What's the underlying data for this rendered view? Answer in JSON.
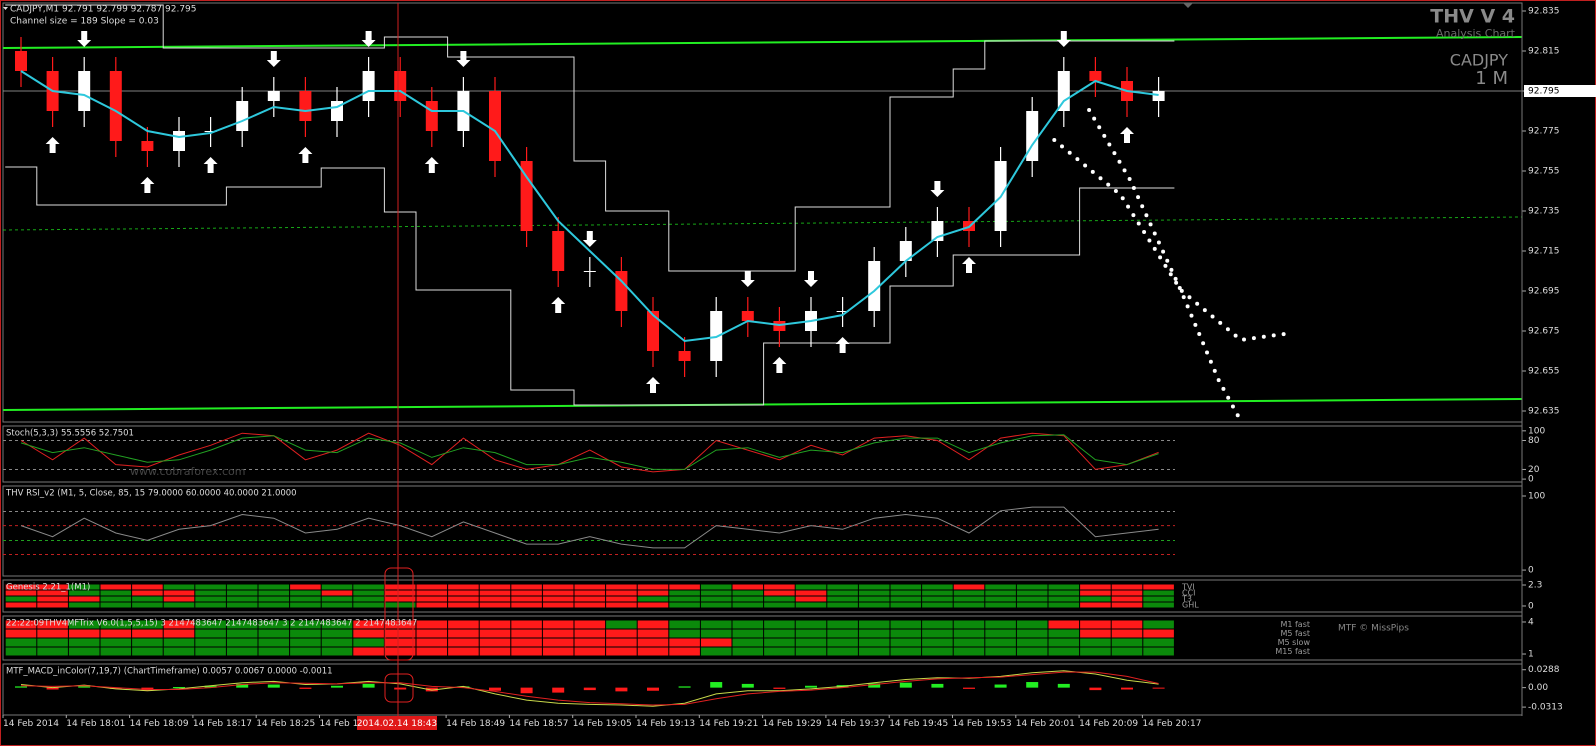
{
  "header": {
    "symbol_line": "CADJPY,M1  92.791 92.799 92.787 92.795",
    "channel_info": "Channel size = 189 Slope = 0.03",
    "logo": "THV V 4",
    "logo_sub": "Analysis Chart",
    "symbol": "CADJPY",
    "timeframe": "1 M"
  },
  "time_axis": {
    "labels": [
      "14 Feb 2014",
      "14 Feb 18:01",
      "14 Feb 18:09",
      "14 Feb 18:17",
      "14 Feb 18:25",
      "14 Feb 18",
      null,
      "14 Feb 18:49",
      "14 Feb 18:57",
      "14 Feb 19:05",
      "14 Feb 19:13",
      "14 Feb 19:21",
      "14 Feb 19:29",
      "14 Feb 19:37",
      "14 Feb 19:45",
      "14 Feb 19:53",
      "14 Feb 20:01",
      "14 Feb 20:09",
      "14 Feb 20:17"
    ],
    "crosshair": "2014.02.14 18:43"
  },
  "chart_data": [
    {
      "type": "candlestick",
      "up_color": "#ffffff",
      "down_color": "#ff1a1a",
      "open": [
        92.815,
        92.805,
        92.785,
        92.805,
        92.77,
        92.765,
        92.775,
        92.775,
        92.79,
        92.795,
        92.78,
        92.79,
        92.805,
        92.79,
        92.775,
        92.795,
        92.76,
        92.725,
        92.705,
        92.705,
        92.685,
        92.665,
        92.66,
        92.685,
        92.68,
        92.675,
        92.685,
        92.685,
        92.71,
        92.72,
        92.73,
        92.725,
        92.76,
        92.785,
        92.805,
        92.8,
        92.79
      ],
      "high": [
        92.822,
        92.812,
        92.812,
        92.812,
        92.777,
        92.782,
        92.782,
        92.797,
        92.802,
        92.802,
        92.797,
        92.812,
        92.812,
        92.797,
        92.802,
        92.802,
        92.767,
        92.732,
        92.712,
        92.712,
        92.692,
        92.672,
        92.692,
        92.692,
        92.687,
        92.692,
        92.692,
        92.717,
        92.727,
        92.737,
        92.737,
        92.767,
        92.792,
        92.812,
        92.812,
        92.807,
        92.802
      ],
      "low": [
        92.797,
        92.777,
        92.777,
        92.762,
        92.757,
        92.757,
        92.767,
        92.767,
        92.782,
        92.772,
        92.772,
        92.782,
        92.782,
        92.767,
        92.767,
        92.752,
        92.717,
        92.697,
        92.697,
        92.677,
        92.657,
        92.652,
        92.652,
        92.672,
        92.667,
        92.667,
        92.677,
        92.677,
        92.702,
        92.712,
        92.717,
        92.717,
        92.752,
        92.777,
        92.792,
        92.782,
        92.782
      ],
      "close": [
        92.805,
        92.785,
        92.805,
        92.77,
        92.765,
        92.775,
        92.775,
        92.79,
        92.795,
        92.78,
        92.79,
        92.805,
        92.79,
        92.775,
        92.795,
        92.76,
        92.725,
        92.705,
        92.705,
        92.685,
        92.665,
        92.66,
        92.685,
        92.68,
        92.675,
        92.685,
        92.685,
        92.71,
        92.72,
        92.73,
        92.725,
        92.76,
        92.785,
        92.805,
        92.8,
        92.79,
        92.795
      ],
      "ma": {
        "color": "#2ec8dc",
        "values": [
          92.805,
          92.795,
          92.793,
          92.785,
          92.775,
          92.772,
          92.774,
          92.78,
          92.787,
          92.785,
          92.787,
          92.795,
          92.795,
          92.785,
          92.785,
          92.775,
          92.752,
          92.73,
          92.715,
          92.7,
          92.683,
          92.67,
          92.672,
          92.68,
          92.678,
          92.68,
          92.683,
          92.695,
          92.71,
          92.722,
          92.727,
          92.742,
          92.768,
          92.79,
          92.8,
          92.795,
          92.793
        ]
      },
      "bands": {
        "color": "#dddddd",
        "upper": [
          92.838,
          92.838,
          92.838,
          92.838,
          92.838,
          92.8165,
          92.8165,
          92.8165,
          92.8165,
          92.8165,
          92.8165,
          92.8165,
          92.822,
          92.822,
          92.812,
          92.812,
          92.812,
          92.812,
          92.76,
          92.735,
          92.735,
          92.705,
          92.705,
          92.705,
          92.705,
          92.737,
          92.737,
          92.737,
          92.792,
          92.792,
          92.806,
          92.82,
          92.82,
          92.82,
          92.82,
          92.82,
          92.82
        ],
        "lower": [
          92.757,
          92.738,
          92.738,
          92.738,
          92.738,
          92.738,
          92.738,
          92.747,
          92.747,
          92.747,
          92.7565,
          92.7565,
          92.7345,
          92.6955,
          92.6955,
          92.6955,
          92.6455,
          92.6455,
          92.638,
          92.638,
          92.638,
          92.638,
          92.638,
          92.638,
          92.669,
          92.669,
          92.669,
          92.669,
          92.6975,
          92.6975,
          92.713,
          92.713,
          92.713,
          92.713,
          92.7465,
          92.7465,
          92.7465
        ]
      },
      "channel": {
        "color": "#22ee22",
        "upper": [
          92.8165,
          92.822
        ],
        "lower": [
          92.6355,
          92.641
        ],
        "middle": [
          92.7255,
          92.732
        ]
      },
      "forecast_color": "#ffffff",
      "forecast": [
        {
          "x": [
            32.7,
            34.8,
            36.7,
            38.6,
            40.2
          ],
          "values": [
            92.7705,
            92.743,
            92.6955,
            92.6705,
            92.674
          ]
        },
        {
          "x": [
            33.8,
            35.1,
            36.7,
            37.9,
            38.6
          ],
          "values": [
            92.7855,
            92.7505,
            92.6955,
            92.6505,
            92.63
          ]
        }
      ],
      "arrows": {
        "up": [
          1,
          4,
          6,
          9,
          13,
          17,
          20,
          24,
          26,
          30,
          35
        ],
        "down": [
          2,
          8,
          11,
          14,
          18,
          23,
          25,
          29,
          33
        ]
      },
      "current_price": 92.795,
      "ylim": [
        92.6295,
        92.839
      ],
      "yticks": [
        92.835,
        92.815,
        92.795,
        92.775,
        92.755,
        92.735,
        92.715,
        92.695,
        92.675,
        92.655,
        92.635
      ]
    },
    {
      "type": "line",
      "title": "Stoch(5,3,3) 55.5556 52.7501",
      "watermark": "www.cobraforex.com",
      "series": [
        {
          "color": "#e02020",
          "values": [
            80,
            40,
            85,
            30,
            25,
            50,
            70,
            95,
            90,
            40,
            60,
            95,
            70,
            30,
            85,
            40,
            20,
            30,
            60,
            25,
            15,
            20,
            80,
            60,
            40,
            70,
            50,
            85,
            90,
            80,
            40,
            85,
            95,
            90,
            20,
            30,
            55.5556
          ]
        },
        {
          "color": "#22a022",
          "values": [
            75,
            55,
            65,
            50,
            35,
            40,
            60,
            85,
            90,
            60,
            55,
            85,
            75,
            45,
            65,
            55,
            30,
            30,
            45,
            35,
            20,
            20,
            60,
            65,
            45,
            60,
            55,
            75,
            85,
            85,
            55,
            75,
            90,
            92,
            40,
            30,
            52.7501
          ]
        }
      ],
      "levels": [
        80,
        20
      ],
      "level_colors": [
        "#888888",
        "#888888"
      ],
      "ylim": [
        -6,
        110
      ],
      "yticks": [
        0,
        20,
        80,
        100
      ]
    },
    {
      "type": "line",
      "title": "THV RSI_v2   (M1,  5,  Close,  85,  15 79.0000 60.0000 40.0000 21.0000",
      "series": [
        {
          "color": "#8a8a8a",
          "values": [
            60,
            45,
            70,
            50,
            40,
            55,
            60,
            75,
            70,
            50,
            55,
            70,
            60,
            45,
            65,
            50,
            35,
            35,
            45,
            35,
            30,
            30,
            60,
            55,
            50,
            60,
            55,
            70,
            75,
            70,
            50,
            80,
            85,
            85,
            45,
            50,
            55
          ]
        }
      ],
      "levels": [
        79,
        60,
        40,
        21
      ],
      "level_colors": [
        "#888888",
        "#c02020",
        "#20a020",
        "#c02020"
      ],
      "ylim": [
        -8,
        113.5
      ],
      "yticks": [
        0,
        100
      ]
    },
    {
      "type": "grid",
      "title": "Genesis 2.21_1(M1)",
      "on_color": "#0b8a0b",
      "off_color": "#ff1a1a",
      "row_labels": [
        "TVI",
        "CCI",
        "T3",
        "GHL"
      ],
      "rows": [
        [
          0,
          0,
          1,
          0,
          0,
          1,
          1,
          1,
          1,
          0,
          1,
          1,
          0,
          0,
          0,
          0,
          0,
          0,
          0,
          0,
          0,
          0,
          1,
          0,
          0,
          1,
          1,
          1,
          1,
          1,
          0,
          1,
          1,
          1,
          0,
          0,
          0
        ],
        [
          0,
          0,
          1,
          1,
          0,
          0,
          1,
          1,
          1,
          1,
          0,
          1,
          0,
          0,
          0,
          0,
          0,
          0,
          0,
          0,
          0,
          1,
          1,
          1,
          0,
          0,
          1,
          1,
          1,
          1,
          1,
          1,
          1,
          1,
          0,
          0,
          1
        ],
        [
          1,
          0,
          0,
          1,
          1,
          0,
          1,
          1,
          1,
          1,
          1,
          1,
          0,
          0,
          0,
          0,
          0,
          0,
          0,
          0,
          1,
          1,
          1,
          1,
          1,
          0,
          1,
          1,
          1,
          1,
          1,
          1,
          1,
          1,
          1,
          0,
          1
        ],
        [
          0,
          0,
          1,
          1,
          1,
          1,
          1,
          1,
          1,
          1,
          1,
          1,
          1,
          0,
          0,
          0,
          0,
          0,
          0,
          0,
          0,
          1,
          1,
          1,
          1,
          1,
          1,
          1,
          1,
          1,
          1,
          1,
          1,
          1,
          0,
          0,
          1
        ]
      ],
      "ylim": [
        -0.66,
        2.85
      ],
      "yticks": [
        0,
        2.3
      ]
    },
    {
      "type": "grid",
      "title": "22:22:09THV4MFTrix V6.0(1,5,5,15) 3 2147483647 2147483647 3 2 2147483647 2 2147483647",
      "credit": "MTF © MissPips",
      "on_color": "#0b8a0b",
      "off_color": "#ff1a1a",
      "row_labels": [
        "M1 fast",
        "M5 fast",
        "M5 slow",
        "M15 fast"
      ],
      "rows": [
        [
          0,
          0,
          1,
          1,
          1,
          0,
          1,
          1,
          1,
          1,
          1,
          0,
          0,
          0,
          0,
          0,
          0,
          0,
          0,
          1,
          0,
          1,
          1,
          1,
          1,
          1,
          1,
          1,
          1,
          1,
          1,
          1,
          1,
          0,
          0,
          0,
          1
        ],
        [
          0,
          0,
          0,
          0,
          0,
          0,
          1,
          1,
          1,
          1,
          1,
          0,
          0,
          0,
          0,
          0,
          0,
          0,
          0,
          0,
          0,
          1,
          1,
          1,
          1,
          1,
          1,
          1,
          1,
          1,
          1,
          1,
          1,
          1,
          0,
          0,
          0
        ],
        [
          1,
          1,
          1,
          1,
          1,
          1,
          1,
          1,
          1,
          1,
          1,
          1,
          0,
          0,
          0,
          0,
          0,
          0,
          0,
          0,
          0,
          0,
          0,
          1,
          1,
          1,
          1,
          1,
          1,
          1,
          1,
          1,
          1,
          1,
          1,
          1,
          1
        ],
        [
          1,
          1,
          1,
          1,
          1,
          1,
          1,
          1,
          1,
          1,
          1,
          0,
          0,
          0,
          0,
          0,
          0,
          0,
          0,
          0,
          0,
          0,
          1,
          1,
          1,
          1,
          1,
          1,
          1,
          1,
          1,
          1,
          1,
          1,
          1,
          1,
          1
        ]
      ],
      "ylim": [
        0.44,
        4.56
      ],
      "yticks": [
        1,
        4
      ]
    },
    {
      "type": "bar",
      "title": "MTF_MACD_inColor(7,19,7) (ChartTimeframe) 0.0057 0.0067 0.0000 -0.0011",
      "up_color": "#22ee22",
      "down_color": "#ff1a1a",
      "values": [
        0.002,
        -0.003,
        0.004,
        -0.002,
        -0.005,
        0.001,
        0.003,
        0.006,
        0.005,
        -0.002,
        0.003,
        0.006,
        -0.003,
        -0.006,
        0.002,
        -0.005,
        -0.009,
        -0.008,
        -0.004,
        -0.006,
        -0.005,
        0.002,
        0.009,
        0.006,
        -0.002,
        0.003,
        0.004,
        0.007,
        0.008,
        0.006,
        -0.002,
        0.005,
        0.009,
        0.006,
        -0.004,
        -0.003,
        -0.0011
      ],
      "lines": [
        {
          "color": "#c8d84a",
          "values": [
            0.005,
            0.0,
            0.004,
            -0.002,
            -0.005,
            -0.002,
            0.003,
            0.008,
            0.01,
            0.005,
            0.006,
            0.01,
            0.006,
            -0.004,
            0.002,
            -0.01,
            -0.02,
            -0.025,
            -0.027,
            -0.028,
            -0.03,
            -0.025,
            -0.01,
            -0.005,
            -0.005,
            -0.002,
            0.002,
            0.008,
            0.013,
            0.016,
            0.015,
            0.018,
            0.024,
            0.027,
            0.022,
            0.012,
            0.0057
          ]
        },
        {
          "color": "#e02020",
          "values": [
            0.003,
            0.002,
            0.003,
            0.0,
            -0.003,
            -0.003,
            0.0,
            0.005,
            0.008,
            0.007,
            0.006,
            0.008,
            0.008,
            0.002,
            0.0,
            -0.006,
            -0.014,
            -0.02,
            -0.024,
            -0.026,
            -0.028,
            -0.027,
            -0.018,
            -0.01,
            -0.006,
            -0.004,
            0.0,
            0.005,
            0.01,
            0.014,
            0.016,
            0.017,
            0.021,
            0.025,
            0.025,
            0.018,
            0.0067
          ]
        }
      ],
      "ylim": [
        -0.044,
        0.038
      ],
      "yticks": [
        -0.0313,
        {
          "value": 0,
          "label": "0.00"
        },
        0.0288
      ]
    }
  ]
}
